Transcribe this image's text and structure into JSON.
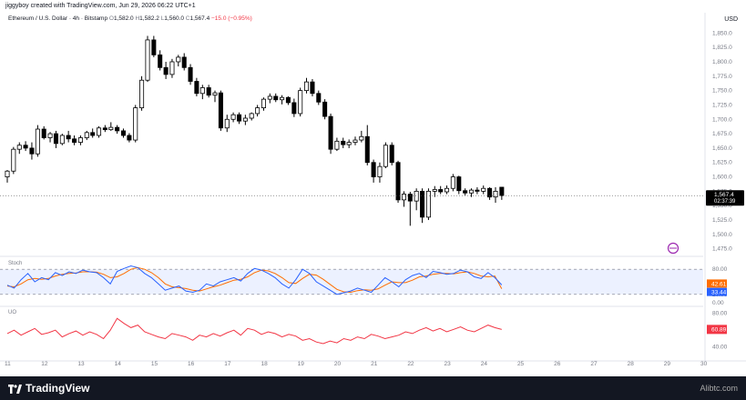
{
  "header": {
    "attribution": "jiggyboy created with TradingView.com, Jun 29, 2026 06:22 UTC+1"
  },
  "legend": {
    "symbol": "Ethereum / U.S. Dollar · 4h · Bitstamp",
    "open": "1,582.0",
    "high": "1,582.2",
    "low": "1,560.0",
    "close": "1,567.4",
    "change": "−15.0 (−0.95%)"
  },
  "currency": "USD",
  "price_axis": [
    "1,850.0",
    "1,825.0",
    "1,800.0",
    "1,775.0",
    "1,750.0",
    "1,725.0",
    "1,700.0",
    "1,675.0",
    "1,650.0",
    "1,625.0",
    "1,600.0",
    "1,575.0",
    "1,550.0",
    "1,525.0",
    "1,500.0",
    "1,475.0"
  ],
  "last_price": {
    "price": "1,567.4",
    "countdown": "02:37:39"
  },
  "stoch": {
    "label": "Stoch",
    "axis": [
      "80.00",
      "20.00",
      "0.00"
    ],
    "k": "42.61",
    "d": "33.44"
  },
  "uo": {
    "label": "UO",
    "axis": [
      "80.00",
      "60.00",
      "40.00"
    ],
    "value": "60.89"
  },
  "time_axis": [
    "11",
    "12",
    "13",
    "14",
    "15",
    "16",
    "17",
    "18",
    "19",
    "20",
    "21",
    "22",
    "23",
    "24",
    "25",
    "26",
    "27",
    "28",
    "29",
    "30"
  ],
  "footer": {
    "brand": "TradingView",
    "watermark": "Alibtc.com"
  },
  "colors": {
    "up": "#ffffff",
    "down": "#000000",
    "k_line": "#2962ff",
    "d_line": "#ff6d00",
    "uo_line": "#f23645",
    "label_red": "#f23645",
    "label_blue": "#2962ff",
    "label_orange": "#ff6d00"
  },
  "chart_data": {
    "type": "candlestick",
    "title": "Ethereum / U.S. Dollar · 4h · Bitstamp",
    "ylim": [
      1465,
      1860
    ],
    "x_range": [
      11,
      30
    ],
    "candles": [
      {
        "x": 11.0,
        "o": 1600,
        "h": 1612,
        "l": 1590,
        "c": 1610
      },
      {
        "x": 11.17,
        "o": 1610,
        "h": 1652,
        "l": 1605,
        "c": 1648
      },
      {
        "x": 11.33,
        "o": 1648,
        "h": 1660,
        "l": 1640,
        "c": 1655
      },
      {
        "x": 11.5,
        "o": 1655,
        "h": 1662,
        "l": 1645,
        "c": 1650
      },
      {
        "x": 11.67,
        "o": 1650,
        "h": 1660,
        "l": 1630,
        "c": 1640
      },
      {
        "x": 11.83,
        "o": 1640,
        "h": 1690,
        "l": 1635,
        "c": 1683
      },
      {
        "x": 12.0,
        "o": 1683,
        "h": 1688,
        "l": 1665,
        "c": 1668
      },
      {
        "x": 12.17,
        "o": 1668,
        "h": 1678,
        "l": 1660,
        "c": 1675
      },
      {
        "x": 12.33,
        "o": 1675,
        "h": 1680,
        "l": 1650,
        "c": 1658
      },
      {
        "x": 12.5,
        "o": 1658,
        "h": 1675,
        "l": 1655,
        "c": 1672
      },
      {
        "x": 12.67,
        "o": 1672,
        "h": 1680,
        "l": 1660,
        "c": 1666
      },
      {
        "x": 12.83,
        "o": 1666,
        "h": 1672,
        "l": 1655,
        "c": 1660
      },
      {
        "x": 13.0,
        "o": 1660,
        "h": 1672,
        "l": 1655,
        "c": 1668
      },
      {
        "x": 13.17,
        "o": 1668,
        "h": 1680,
        "l": 1664,
        "c": 1677
      },
      {
        "x": 13.33,
        "o": 1677,
        "h": 1684,
        "l": 1668,
        "c": 1672
      },
      {
        "x": 13.5,
        "o": 1672,
        "h": 1688,
        "l": 1668,
        "c": 1685
      },
      {
        "x": 13.67,
        "o": 1685,
        "h": 1690,
        "l": 1678,
        "c": 1682
      },
      {
        "x": 13.83,
        "o": 1682,
        "h": 1695,
        "l": 1680,
        "c": 1686
      },
      {
        "x": 14.0,
        "o": 1686,
        "h": 1690,
        "l": 1675,
        "c": 1680
      },
      {
        "x": 14.17,
        "o": 1680,
        "h": 1684,
        "l": 1668,
        "c": 1672
      },
      {
        "x": 14.33,
        "o": 1672,
        "h": 1676,
        "l": 1660,
        "c": 1664
      },
      {
        "x": 14.5,
        "o": 1664,
        "h": 1725,
        "l": 1660,
        "c": 1720
      },
      {
        "x": 14.67,
        "o": 1720,
        "h": 1775,
        "l": 1715,
        "c": 1768
      },
      {
        "x": 14.83,
        "o": 1768,
        "h": 1845,
        "l": 1765,
        "c": 1838
      },
      {
        "x": 15.0,
        "o": 1838,
        "h": 1845,
        "l": 1808,
        "c": 1812
      },
      {
        "x": 15.17,
        "o": 1812,
        "h": 1820,
        "l": 1785,
        "c": 1790
      },
      {
        "x": 15.33,
        "o": 1790,
        "h": 1800,
        "l": 1770,
        "c": 1778
      },
      {
        "x": 15.5,
        "o": 1778,
        "h": 1805,
        "l": 1772,
        "c": 1800
      },
      {
        "x": 15.67,
        "o": 1800,
        "h": 1812,
        "l": 1792,
        "c": 1808
      },
      {
        "x": 15.83,
        "o": 1808,
        "h": 1815,
        "l": 1785,
        "c": 1790
      },
      {
        "x": 16.0,
        "o": 1790,
        "h": 1796,
        "l": 1760,
        "c": 1766
      },
      {
        "x": 16.17,
        "o": 1766,
        "h": 1772,
        "l": 1740,
        "c": 1745
      },
      {
        "x": 16.33,
        "o": 1745,
        "h": 1760,
        "l": 1735,
        "c": 1755
      },
      {
        "x": 16.5,
        "o": 1755,
        "h": 1760,
        "l": 1738,
        "c": 1742
      },
      {
        "x": 16.67,
        "o": 1742,
        "h": 1750,
        "l": 1730,
        "c": 1746
      },
      {
        "x": 16.83,
        "o": 1746,
        "h": 1750,
        "l": 1680,
        "c": 1685
      },
      {
        "x": 17.0,
        "o": 1685,
        "h": 1708,
        "l": 1678,
        "c": 1700
      },
      {
        "x": 17.17,
        "o": 1700,
        "h": 1712,
        "l": 1695,
        "c": 1708
      },
      {
        "x": 17.33,
        "o": 1708,
        "h": 1712,
        "l": 1692,
        "c": 1697
      },
      {
        "x": 17.5,
        "o": 1697,
        "h": 1708,
        "l": 1690,
        "c": 1702
      },
      {
        "x": 17.67,
        "o": 1702,
        "h": 1712,
        "l": 1698,
        "c": 1710
      },
      {
        "x": 17.83,
        "o": 1710,
        "h": 1725,
        "l": 1705,
        "c": 1720
      },
      {
        "x": 18.0,
        "o": 1720,
        "h": 1738,
        "l": 1715,
        "c": 1735
      },
      {
        "x": 18.17,
        "o": 1735,
        "h": 1745,
        "l": 1728,
        "c": 1740
      },
      {
        "x": 18.33,
        "o": 1740,
        "h": 1745,
        "l": 1730,
        "c": 1734
      },
      {
        "x": 18.5,
        "o": 1734,
        "h": 1742,
        "l": 1726,
        "c": 1738
      },
      {
        "x": 18.67,
        "o": 1738,
        "h": 1740,
        "l": 1725,
        "c": 1729
      },
      {
        "x": 18.83,
        "o": 1729,
        "h": 1736,
        "l": 1704,
        "c": 1710
      },
      {
        "x": 19.0,
        "o": 1710,
        "h": 1755,
        "l": 1705,
        "c": 1750
      },
      {
        "x": 19.17,
        "o": 1750,
        "h": 1772,
        "l": 1745,
        "c": 1765
      },
      {
        "x": 19.33,
        "o": 1765,
        "h": 1770,
        "l": 1740,
        "c": 1745
      },
      {
        "x": 19.5,
        "o": 1745,
        "h": 1750,
        "l": 1725,
        "c": 1730
      },
      {
        "x": 19.67,
        "o": 1730,
        "h": 1735,
        "l": 1700,
        "c": 1705
      },
      {
        "x": 19.83,
        "o": 1705,
        "h": 1710,
        "l": 1640,
        "c": 1648
      },
      {
        "x": 20.0,
        "o": 1648,
        "h": 1668,
        "l": 1645,
        "c": 1662
      },
      {
        "x": 20.17,
        "o": 1662,
        "h": 1668,
        "l": 1650,
        "c": 1656
      },
      {
        "x": 20.33,
        "o": 1656,
        "h": 1665,
        "l": 1650,
        "c": 1660
      },
      {
        "x": 20.5,
        "o": 1660,
        "h": 1670,
        "l": 1655,
        "c": 1664
      },
      {
        "x": 20.67,
        "o": 1664,
        "h": 1680,
        "l": 1660,
        "c": 1670
      },
      {
        "x": 20.83,
        "o": 1670,
        "h": 1690,
        "l": 1620,
        "c": 1625
      },
      {
        "x": 21.0,
        "o": 1625,
        "h": 1630,
        "l": 1590,
        "c": 1600
      },
      {
        "x": 21.17,
        "o": 1600,
        "h": 1625,
        "l": 1590,
        "c": 1618
      },
      {
        "x": 21.33,
        "o": 1618,
        "h": 1660,
        "l": 1615,
        "c": 1655
      },
      {
        "x": 21.5,
        "o": 1655,
        "h": 1660,
        "l": 1620,
        "c": 1625
      },
      {
        "x": 21.67,
        "o": 1625,
        "h": 1628,
        "l": 1555,
        "c": 1560
      },
      {
        "x": 21.83,
        "o": 1560,
        "h": 1575,
        "l": 1548,
        "c": 1570
      },
      {
        "x": 22.0,
        "o": 1570,
        "h": 1574,
        "l": 1515,
        "c": 1558
      },
      {
        "x": 22.17,
        "o": 1558,
        "h": 1580,
        "l": 1542,
        "c": 1575
      },
      {
        "x": 22.33,
        "o": 1575,
        "h": 1580,
        "l": 1520,
        "c": 1530
      },
      {
        "x": 22.5,
        "o": 1530,
        "h": 1580,
        "l": 1525,
        "c": 1575
      },
      {
        "x": 22.67,
        "o": 1575,
        "h": 1584,
        "l": 1565,
        "c": 1578
      },
      {
        "x": 22.83,
        "o": 1578,
        "h": 1584,
        "l": 1570,
        "c": 1574
      },
      {
        "x": 23.0,
        "o": 1574,
        "h": 1585,
        "l": 1570,
        "c": 1580
      },
      {
        "x": 23.17,
        "o": 1580,
        "h": 1605,
        "l": 1575,
        "c": 1600
      },
      {
        "x": 23.33,
        "o": 1600,
        "h": 1602,
        "l": 1570,
        "c": 1576
      },
      {
        "x": 23.5,
        "o": 1576,
        "h": 1580,
        "l": 1568,
        "c": 1572
      },
      {
        "x": 23.67,
        "o": 1572,
        "h": 1580,
        "l": 1565,
        "c": 1577
      },
      {
        "x": 23.83,
        "o": 1577,
        "h": 1582,
        "l": 1570,
        "c": 1575
      },
      {
        "x": 24.0,
        "o": 1575,
        "h": 1585,
        "l": 1570,
        "c": 1580
      },
      {
        "x": 24.17,
        "o": 1580,
        "h": 1582,
        "l": 1560,
        "c": 1565
      },
      {
        "x": 24.33,
        "o": 1565,
        "h": 1582,
        "l": 1555,
        "c": 1575
      },
      {
        "x": 24.5,
        "o": 1582,
        "h": 1582.2,
        "l": 1560,
        "c": 1567.4
      }
    ],
    "stoch_k": [
      42,
      35,
      55,
      70,
      50,
      60,
      55,
      72,
      65,
      74,
      70,
      78,
      74,
      72,
      60,
      45,
      75,
      82,
      88,
      84,
      70,
      60,
      45,
      30,
      35,
      40,
      28,
      25,
      30,
      45,
      40,
      50,
      55,
      60,
      52,
      70,
      82,
      78,
      70,
      60,
      45,
      35,
      55,
      80,
      70,
      50,
      40,
      30,
      20,
      24,
      28,
      35,
      30,
      25,
      42,
      60,
      50,
      38,
      55,
      65,
      70,
      60,
      75,
      72,
      68,
      70,
      78,
      74,
      62,
      58,
      72,
      60,
      42.61
    ],
    "stoch_d": [
      40,
      38,
      45,
      55,
      58,
      56,
      58,
      64,
      68,
      70,
      71,
      74,
      74,
      73,
      68,
      60,
      62,
      70,
      80,
      84,
      80,
      72,
      60,
      45,
      38,
      36,
      34,
      30,
      28,
      33,
      38,
      42,
      48,
      54,
      56,
      62,
      72,
      78,
      76,
      70,
      60,
      48,
      46,
      58,
      68,
      66,
      56,
      44,
      32,
      26,
      25,
      29,
      31,
      30,
      33,
      42,
      50,
      48,
      48,
      54,
      62,
      64,
      68,
      70,
      70,
      69,
      72,
      74,
      70,
      64,
      62,
      64,
      33.44
    ],
    "uo": [
      56,
      60,
      54,
      58,
      62,
      55,
      57,
      60,
      52,
      56,
      59,
      54,
      58,
      55,
      50,
      60,
      74,
      68,
      63,
      66,
      58,
      55,
      52,
      50,
      56,
      54,
      52,
      48,
      54,
      52,
      56,
      53,
      57,
      60,
      54,
      62,
      60,
      55,
      58,
      56,
      52,
      55,
      53,
      48,
      50,
      46,
      44,
      47,
      45,
      50,
      48,
      52,
      50,
      55,
      53,
      50,
      52,
      54,
      58,
      56,
      60,
      63,
      59,
      62,
      58,
      61,
      64,
      60,
      58,
      62,
      66,
      63,
      60.89
    ]
  }
}
